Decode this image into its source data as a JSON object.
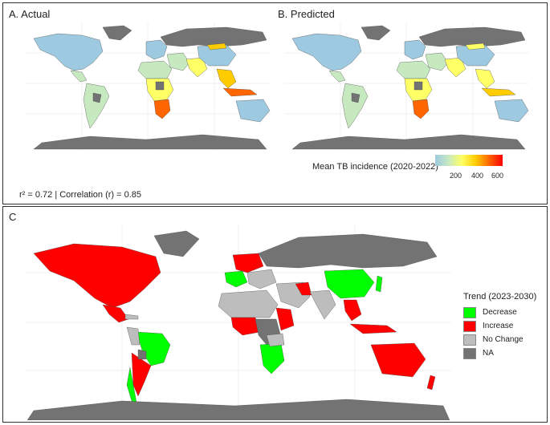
{
  "panels": {
    "actual_title": "A. Actual",
    "predicted_title": "B. Predicted",
    "c_title": "C"
  },
  "incidence_legend": {
    "title": "Mean TB incidence (2020-2022)",
    "ticks": [
      "200",
      "400",
      "600"
    ],
    "colors": [
      "#9ecae1",
      "#c7e9c0",
      "#ffff66",
      "#ffcc00",
      "#ff6600",
      "#ff0000"
    ]
  },
  "stats": "r² = 0.72 | Correlation (r) = 0.85",
  "trend_legend": {
    "title": "Trend (2023-2030)",
    "items": [
      {
        "label": "Decrease",
        "color": "#00ff00"
      },
      {
        "label": "Increase",
        "color": "#ff0000"
      },
      {
        "label": "No Change",
        "color": "#bdbdbd"
      },
      {
        "label": "NA",
        "color": "#737373"
      }
    ]
  },
  "map_colors": {
    "low": "#9ecae1",
    "midlow": "#c7e9c0",
    "mid": "#ffff66",
    "high": "#ffcc00",
    "vhigh": "#ff6600",
    "na": "#737373",
    "white": "#ffffff"
  }
}
